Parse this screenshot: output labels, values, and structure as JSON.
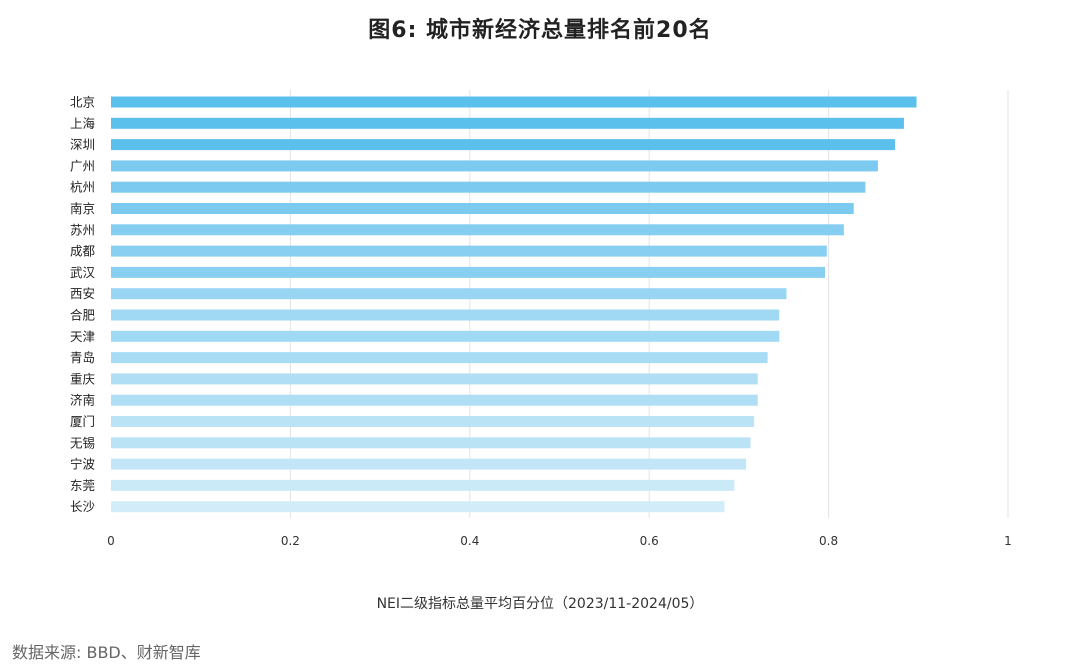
{
  "chart_data": {
    "type": "bar",
    "orientation": "horizontal",
    "title": "图6: 城市新经济总量排名前20名",
    "xlabel": "NEI二级指标总量平均百分位（2023/11-2024/05）",
    "ylabel": "",
    "xlim": [
      0,
      1
    ],
    "x_ticks": [
      0,
      0.2,
      0.4,
      0.6,
      0.8,
      1
    ],
    "x_tick_labels": [
      "0",
      "0.2",
      "0.4",
      "0.6",
      "0.8",
      "1"
    ],
    "grid": "vertical",
    "categories": [
      "北京",
      "上海",
      "深圳",
      "广州",
      "杭州",
      "南京",
      "苏州",
      "成都",
      "武汉",
      "西安",
      "合肥",
      "天津",
      "青岛",
      "重庆",
      "济南",
      "厦门",
      "无锡",
      "宁波",
      "东莞",
      "长沙"
    ],
    "values": [
      0.898,
      0.884,
      0.874,
      0.855,
      0.841,
      0.828,
      0.817,
      0.798,
      0.796,
      0.753,
      0.745,
      0.745,
      0.732,
      0.721,
      0.721,
      0.717,
      0.713,
      0.708,
      0.695,
      0.684
    ],
    "bar_colors": [
      "#5bc0ec",
      "#5bc0ec",
      "#5bc0ec",
      "#7ccaf0",
      "#7ccaf0",
      "#7ccaf0",
      "#85cef1",
      "#88cff1",
      "#88cff1",
      "#98d5f3",
      "#a0d9f4",
      "#a0d9f4",
      "#a8dcf5",
      "#b0dff5",
      "#b0dff5",
      "#bbe3f6",
      "#bbe3f6",
      "#c2e6f7",
      "#cbeaf8",
      "#d2edf9"
    ]
  },
  "source": "数据来源: BBD、财新智库"
}
